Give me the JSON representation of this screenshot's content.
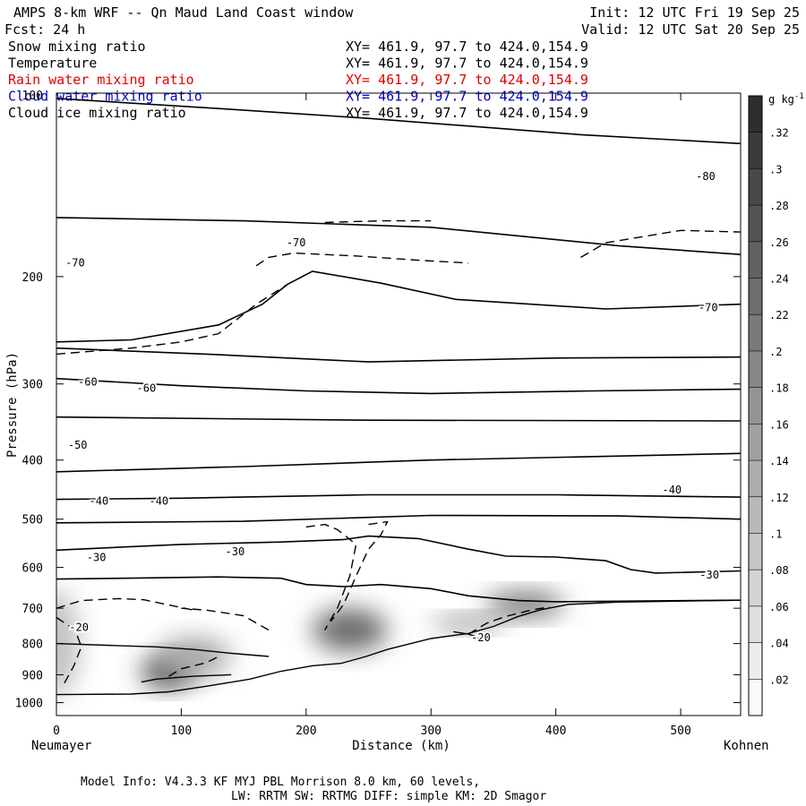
{
  "header": {
    "title": "AMPS 8-km WRF -- Qn Maud Land Coast window",
    "init": "Init: 12 UTC Fri 19 Sep 25",
    "fcst": "Fcst:   24 h",
    "valid": "Valid: 12 UTC Sat 20 Sep 25"
  },
  "fields": [
    {
      "label": "Snow mixing ratio",
      "xy": "XY= 461.9, 97.7 to 424.0,154.9",
      "color": "#000000"
    },
    {
      "label": "Temperature",
      "xy": "XY= 461.9, 97.7 to 424.0,154.9",
      "color": "#000000"
    },
    {
      "label": "Rain water mixing ratio",
      "xy": "XY= 461.9, 97.7 to 424.0,154.9",
      "color": "#e00000"
    },
    {
      "label": "Cloud water mixing ratio",
      "xy": "XY= 461.9, 97.7 to 424.0,154.9",
      "color": "#0000cc"
    },
    {
      "label": "Cloud ice mixing ratio",
      "xy": "XY= 461.9, 97.7 to 424.0,154.9",
      "color": "#000000"
    }
  ],
  "footer": {
    "line1": "Model Info: V4.3.3   KF      MYJ PBL  Morrison             8.0 km,  60 levels,",
    "line2": "LW: RRTM SW: RRTMG   DIFF: simple KM: 2D Smagor"
  },
  "chart_data": {
    "type": "heatmap",
    "title": "AMPS 8-km WRF -- Qn Maud Land Coast window",
    "xlabel": "Distance (km)",
    "ylabel": "Pressure (hPa)",
    "xlim": [
      0,
      548
    ],
    "ylim": [
      1050,
      100
    ],
    "y_scale": "log",
    "x_ticks": [
      0,
      100,
      200,
      300,
      400,
      500
    ],
    "y_ticks": [
      200,
      300,
      400,
      500,
      600,
      700,
      800,
      900,
      1000
    ],
    "y_top_label": "100",
    "x_left_label": "Neumayer",
    "x_right_label": "Kohnen",
    "colorbar": {
      "unit": "g kg",
      "unit_sup": "-1",
      "ticks": [
        ".02",
        ".04",
        ".06",
        ".08",
        ".1",
        ".12",
        ".14",
        ".16",
        ".18",
        ".2",
        ".22",
        ".24",
        ".26",
        ".28",
        ".3",
        ".32"
      ],
      "min": 0,
      "max": 0.34
    },
    "snow_blobs": [
      {
        "cx": 0,
        "cy": 800,
        "rx": 18,
        "ry": 160,
        "value": 0.1
      },
      {
        "cx": 90,
        "cy": 890,
        "rx": 22,
        "ry": 50,
        "value": 0.3
      },
      {
        "cx": 110,
        "cy": 840,
        "rx": 30,
        "ry": 60,
        "value": 0.14
      },
      {
        "cx": 235,
        "cy": 760,
        "rx": 30,
        "ry": 60,
        "value": 0.24
      },
      {
        "cx": 330,
        "cy": 740,
        "rx": 30,
        "ry": 20,
        "value": 0.18
      },
      {
        "cx": 375,
        "cy": 690,
        "rx": 32,
        "ry": 30,
        "value": 0.24
      }
    ],
    "temperature_labels": [
      {
        "text": "-80",
        "x": 520,
        "p": 137
      },
      {
        "text": "-70",
        "x": 15,
        "p": 190
      },
      {
        "text": "-70",
        "x": 192,
        "p": 176
      },
      {
        "text": "-70",
        "x": 522,
        "p": 225
      },
      {
        "text": "-60",
        "x": 25,
        "p": 298
      },
      {
        "text": "-60",
        "x": 72,
        "p": 305
      },
      {
        "text": "-50",
        "x": 17,
        "p": 378
      },
      {
        "text": "-40",
        "x": 34,
        "p": 467
      },
      {
        "text": "-40",
        "x": 82,
        "p": 467
      },
      {
        "text": "-40",
        "x": 493,
        "p": 448
      },
      {
        "text": "-30",
        "x": 32,
        "p": 578
      },
      {
        "text": "-30",
        "x": 143,
        "p": 565
      },
      {
        "text": "-30",
        "x": 523,
        "p": 617
      },
      {
        "text": "-20",
        "x": 18,
        "p": 752
      },
      {
        "text": "-20",
        "x": 340,
        "p": 782
      }
    ],
    "temperature_contours": [
      [
        [
          0,
          102
        ],
        [
          130,
          106
        ],
        [
          250,
          110
        ],
        [
          420,
          117
        ],
        [
          548,
          121
        ]
      ],
      [
        [
          0,
          160
        ],
        [
          150,
          162
        ],
        [
          300,
          166
        ],
        [
          450,
          178
        ],
        [
          548,
          184
        ]
      ],
      [
        [
          0,
          256
        ],
        [
          60,
          254
        ],
        [
          130,
          240
        ],
        [
          165,
          222
        ],
        [
          185,
          206
        ],
        [
          205,
          196
        ],
        [
          260,
          205
        ],
        [
          320,
          218
        ],
        [
          440,
          226
        ],
        [
          548,
          222
        ]
      ],
      [
        [
          0,
          262
        ],
        [
          120,
          268
        ],
        [
          250,
          276
        ],
        [
          400,
          272
        ],
        [
          548,
          271
        ]
      ],
      [
        [
          0,
          294
        ],
        [
          100,
          302
        ],
        [
          200,
          308
        ],
        [
          300,
          311
        ],
        [
          430,
          308
        ],
        [
          548,
          306
        ]
      ],
      [
        [
          0,
          340
        ],
        [
          250,
          344
        ],
        [
          548,
          345
        ]
      ],
      [
        [
          0,
          418
        ],
        [
          150,
          410
        ],
        [
          300,
          400
        ],
        [
          548,
          390
        ]
      ],
      [
        [
          0,
          464
        ],
        [
          100,
          462
        ],
        [
          250,
          456
        ],
        [
          400,
          456
        ],
        [
          548,
          460
        ]
      ],
      [
        [
          0,
          507
        ],
        [
          150,
          504
        ],
        [
          300,
          493
        ],
        [
          450,
          494
        ],
        [
          548,
          500
        ]
      ],
      [
        [
          0,
          562
        ],
        [
          100,
          550
        ],
        [
          180,
          545
        ],
        [
          230,
          540
        ],
        [
          250,
          533
        ],
        [
          290,
          538
        ],
        [
          330,
          560
        ],
        [
          360,
          575
        ],
        [
          400,
          577
        ],
        [
          440,
          585
        ],
        [
          460,
          605
        ],
        [
          480,
          613
        ],
        [
          548,
          608
        ]
      ],
      [
        [
          0,
          627
        ],
        [
          80,
          624
        ],
        [
          130,
          622
        ],
        [
          180,
          625
        ],
        [
          200,
          640
        ],
        [
          230,
          645
        ],
        [
          260,
          640
        ],
        [
          300,
          650
        ],
        [
          330,
          668
        ],
        [
          370,
          680
        ],
        [
          400,
          683
        ],
        [
          548,
          679
        ]
      ]
    ],
    "snow_contours": [
      [
        [
          0,
          970
        ],
        [
          60,
          968
        ],
        [
          90,
          960
        ],
        [
          120,
          940
        ],
        [
          155,
          915
        ],
        [
          180,
          888
        ],
        [
          205,
          870
        ],
        [
          228,
          862
        ],
        [
          248,
          840
        ],
        [
          265,
          818
        ],
        [
          300,
          785
        ],
        [
          330,
          770
        ],
        [
          350,
          750
        ],
        [
          370,
          722
        ],
        [
          388,
          704
        ],
        [
          410,
          690
        ],
        [
          450,
          684
        ],
        [
          548,
          679
        ]
      ],
      [
        [
          0,
          800
        ],
        [
          40,
          805
        ],
        [
          80,
          810
        ],
        [
          110,
          818
        ],
        [
          140,
          830
        ],
        [
          170,
          840
        ]
      ],
      [
        [
          68,
          925
        ],
        [
          80,
          915
        ],
        [
          110,
          905
        ],
        [
          140,
          900
        ]
      ],
      [
        [
          340,
          785
        ],
        [
          330,
          772
        ],
        [
          318,
          765
        ]
      ]
    ],
    "ice_contours": [
      [
        [
          0,
          700
        ],
        [
          20,
          680
        ],
        [
          50,
          675
        ],
        [
          70,
          678
        ],
        [
          110,
          705
        ]
      ],
      [
        [
          0,
          725
        ],
        [
          15,
          760
        ],
        [
          20,
          810
        ],
        [
          14,
          870
        ],
        [
          5,
          940
        ]
      ],
      [
        [
          170,
          760
        ],
        [
          160,
          740
        ],
        [
          150,
          720
        ],
        [
          120,
          705
        ],
        [
          100,
          700
        ]
      ],
      [
        [
          200,
          515
        ],
        [
          215,
          510
        ],
        [
          225,
          520
        ],
        [
          240,
          550
        ],
        [
          235,
          620
        ],
        [
          225,
          700
        ],
        [
          215,
          760
        ]
      ],
      [
        [
          250,
          510
        ],
        [
          265,
          505
        ],
        [
          260,
          530
        ],
        [
          250,
          560
        ],
        [
          240,
          620
        ],
        [
          230,
          690
        ],
        [
          220,
          735
        ]
      ],
      [
        [
          160,
          192
        ],
        [
          170,
          186
        ],
        [
          190,
          183
        ],
        [
          240,
          185
        ],
        [
          290,
          188
        ],
        [
          330,
          190
        ]
      ],
      [
        [
          0,
          268
        ],
        [
          60,
          262
        ],
        [
          100,
          256
        ],
        [
          130,
          248
        ],
        [
          160,
          222
        ],
        [
          185,
          206
        ]
      ],
      [
        [
          420,
          186
        ],
        [
          440,
          176
        ],
        [
          500,
          168
        ],
        [
          548,
          169
        ]
      ],
      [
        [
          215,
          163
        ],
        [
          260,
          162
        ],
        [
          300,
          162
        ]
      ],
      [
        [
          90,
          905
        ],
        [
          100,
          880
        ],
        [
          120,
          860
        ],
        [
          130,
          840
        ]
      ],
      [
        [
          330,
          772
        ],
        [
          345,
          740
        ],
        [
          360,
          722
        ],
        [
          380,
          705
        ],
        [
          395,
          696
        ]
      ]
    ]
  }
}
